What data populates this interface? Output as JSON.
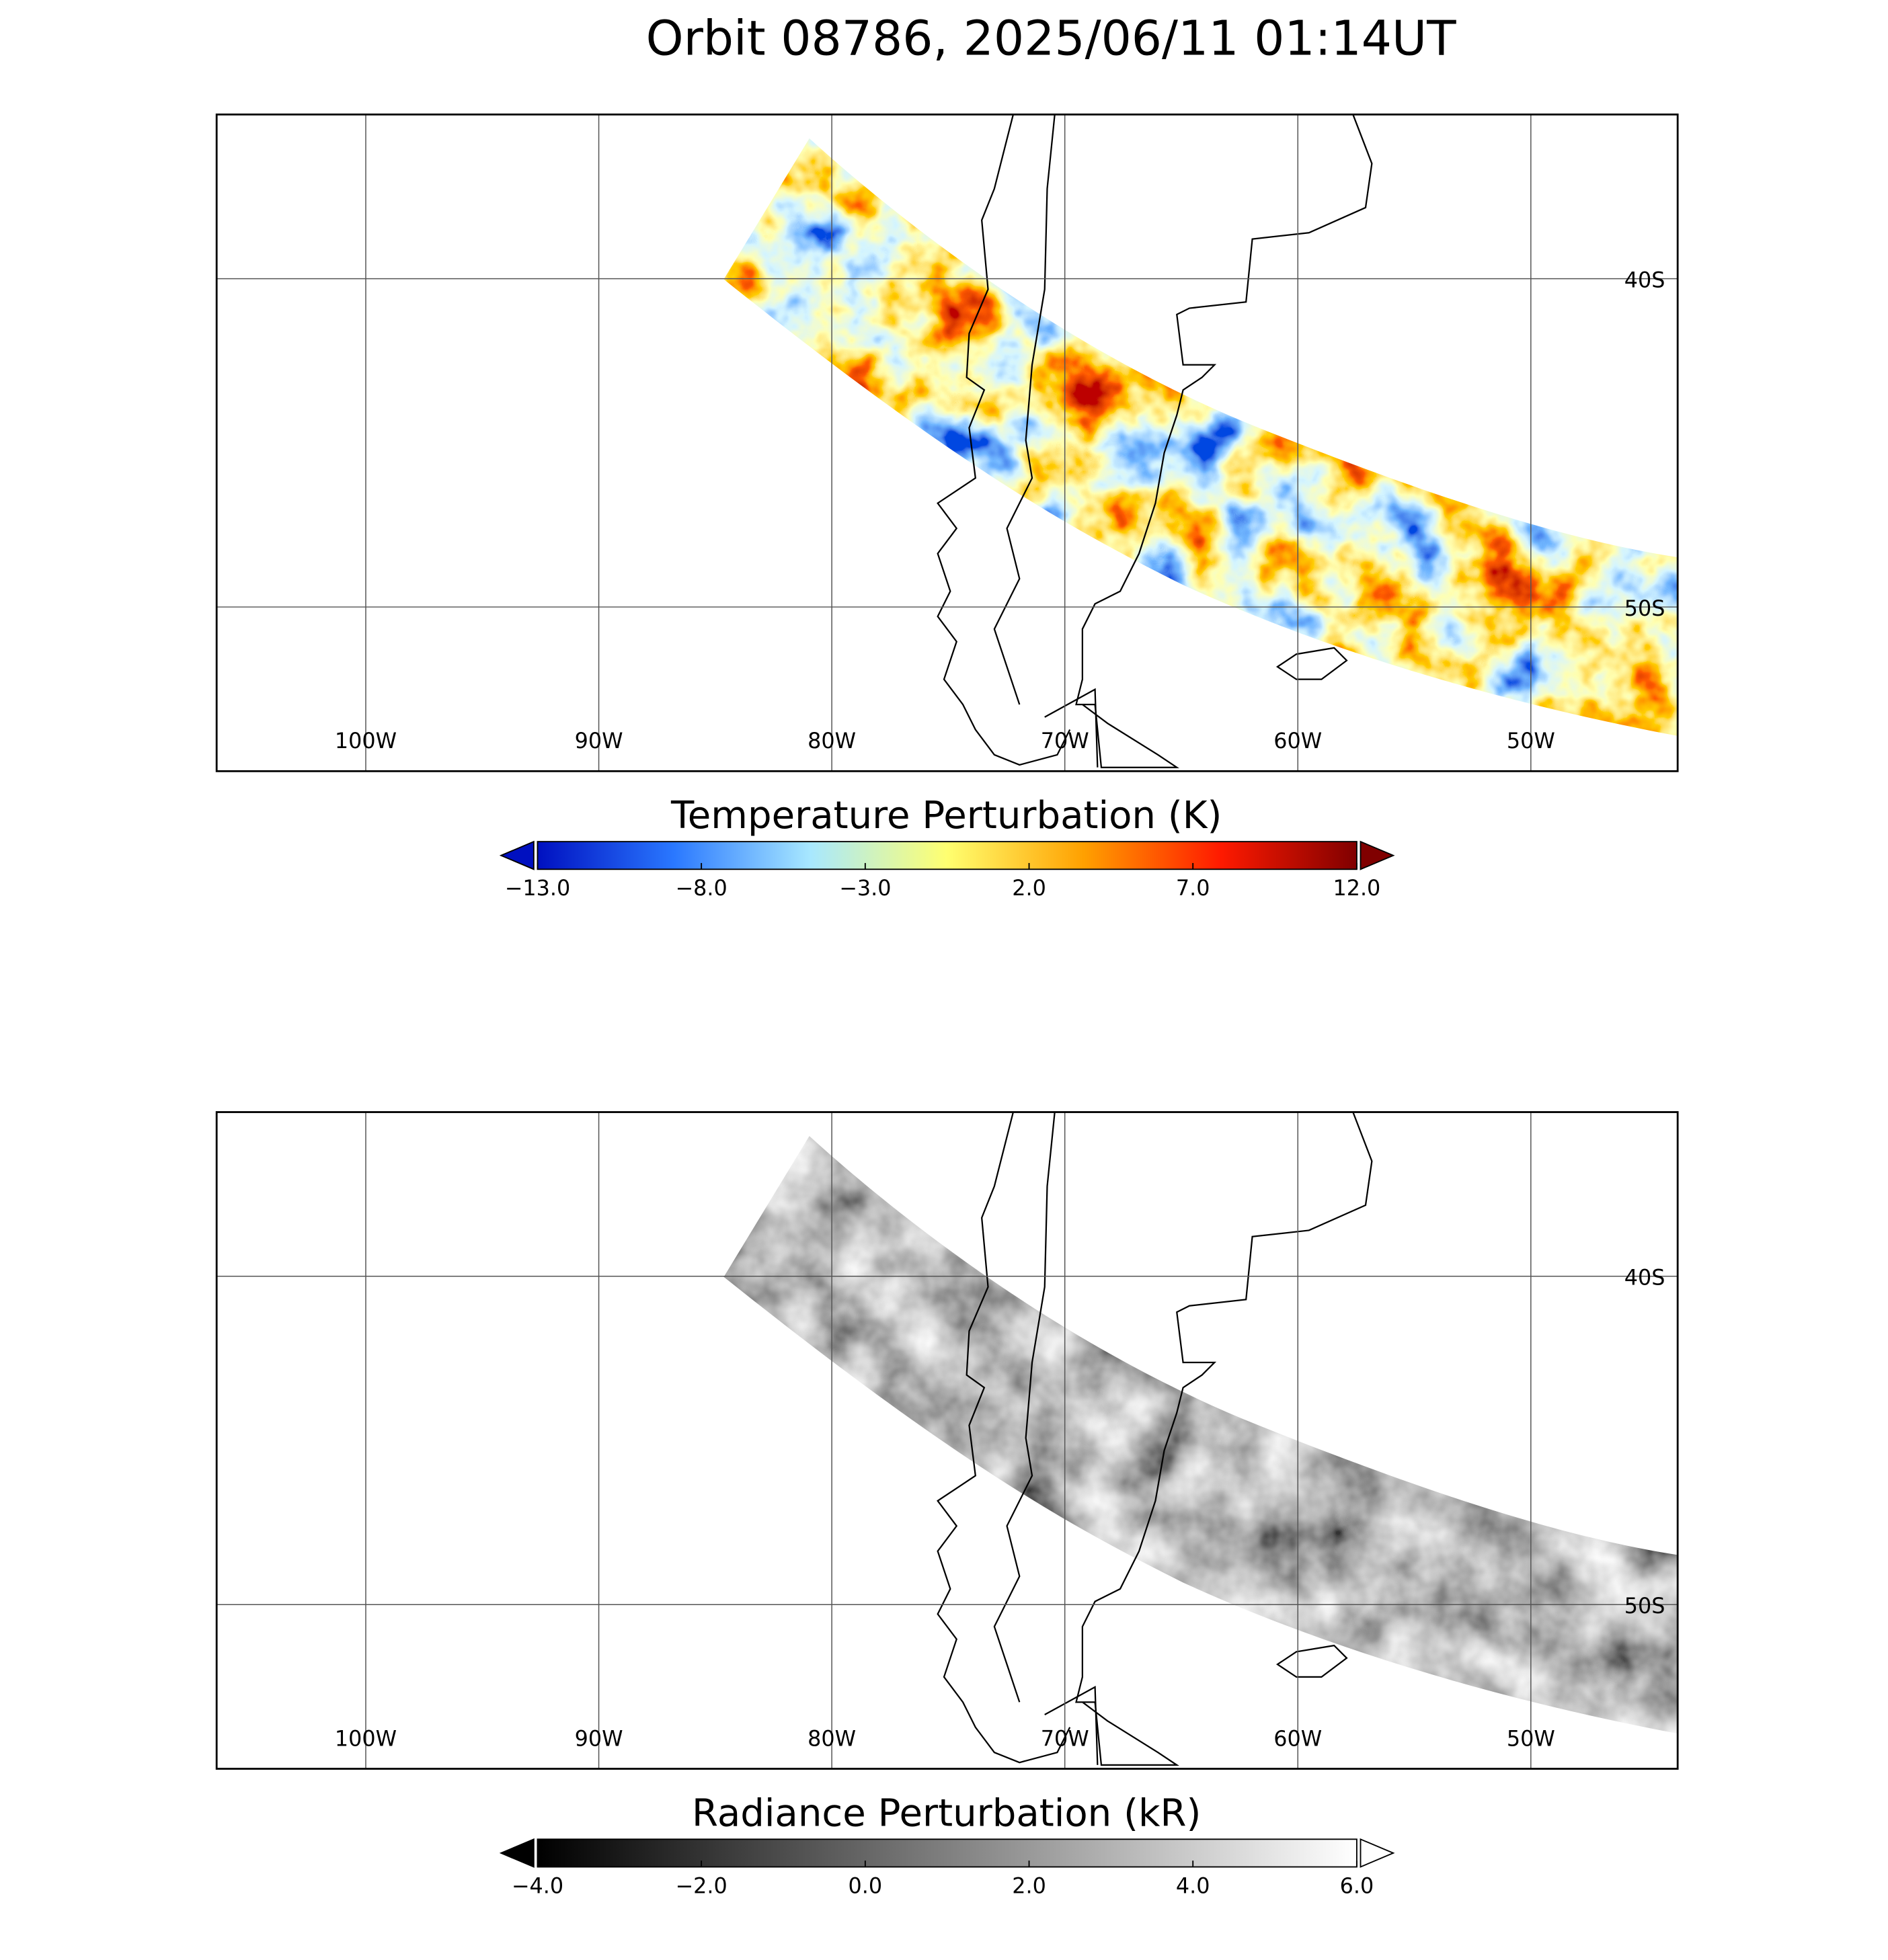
{
  "chart_data": [
    {
      "type": "map",
      "title": "Orbit 08786, 2025/06/11 01:14UT",
      "xlim": [
        -106.4,
        -43.7
      ],
      "ylim": [
        -55,
        -35
      ],
      "grid": true,
      "xticks": [
        {
          "value": -100,
          "label": "100W"
        },
        {
          "value": -90,
          "label": "90W"
        },
        {
          "value": -80,
          "label": "80W"
        },
        {
          "value": -70,
          "label": "70W"
        },
        {
          "value": -60,
          "label": "60W"
        },
        {
          "value": -50,
          "label": "50W"
        }
      ],
      "yticks": [
        {
          "value": -40,
          "label": "40S"
        },
        {
          "value": -50,
          "label": "50S"
        }
      ],
      "colorbar_label": "Temperature Perturbation (K)",
      "clim": [
        -13,
        12
      ],
      "colorbar_ticks": [
        {
          "value": -13,
          "label": "−13.0"
        },
        {
          "value": -8,
          "label": "−8.0"
        },
        {
          "value": -3,
          "label": "−3.0"
        },
        {
          "value": 2,
          "label": "2.0"
        },
        {
          "value": 7,
          "label": "7.0"
        },
        {
          "value": 12,
          "label": "12.0"
        }
      ],
      "colormap": [
        "#0010c0",
        "#2a78ff",
        "#a8e8ff",
        "#ffff70",
        "#ffa000",
        "#ff1a00",
        "#800000"
      ]
    },
    {
      "type": "map",
      "xlim": [
        -106.4,
        -43.7
      ],
      "ylim": [
        -55,
        -35
      ],
      "grid": true,
      "xticks": [
        {
          "value": -100,
          "label": "100W"
        },
        {
          "value": -90,
          "label": "90W"
        },
        {
          "value": -80,
          "label": "80W"
        },
        {
          "value": -70,
          "label": "70W"
        },
        {
          "value": -60,
          "label": "60W"
        },
        {
          "value": -50,
          "label": "50W"
        }
      ],
      "yticks": [
        {
          "value": -40,
          "label": "40S"
        },
        {
          "value": -50,
          "label": "50S"
        }
      ],
      "colorbar_label": "Radiance Perturbation (kR)",
      "clim": [
        -4,
        6
      ],
      "colorbar_ticks": [
        {
          "value": -4,
          "label": "−4.0"
        },
        {
          "value": -2,
          "label": "−2.0"
        },
        {
          "value": 0,
          "label": "0.0"
        },
        {
          "value": 2,
          "label": "2.0"
        },
        {
          "value": 4,
          "label": "4.0"
        },
        {
          "value": 6,
          "label": "6.0"
        }
      ],
      "colormap": [
        "#000000",
        "#ffffff"
      ]
    }
  ]
}
